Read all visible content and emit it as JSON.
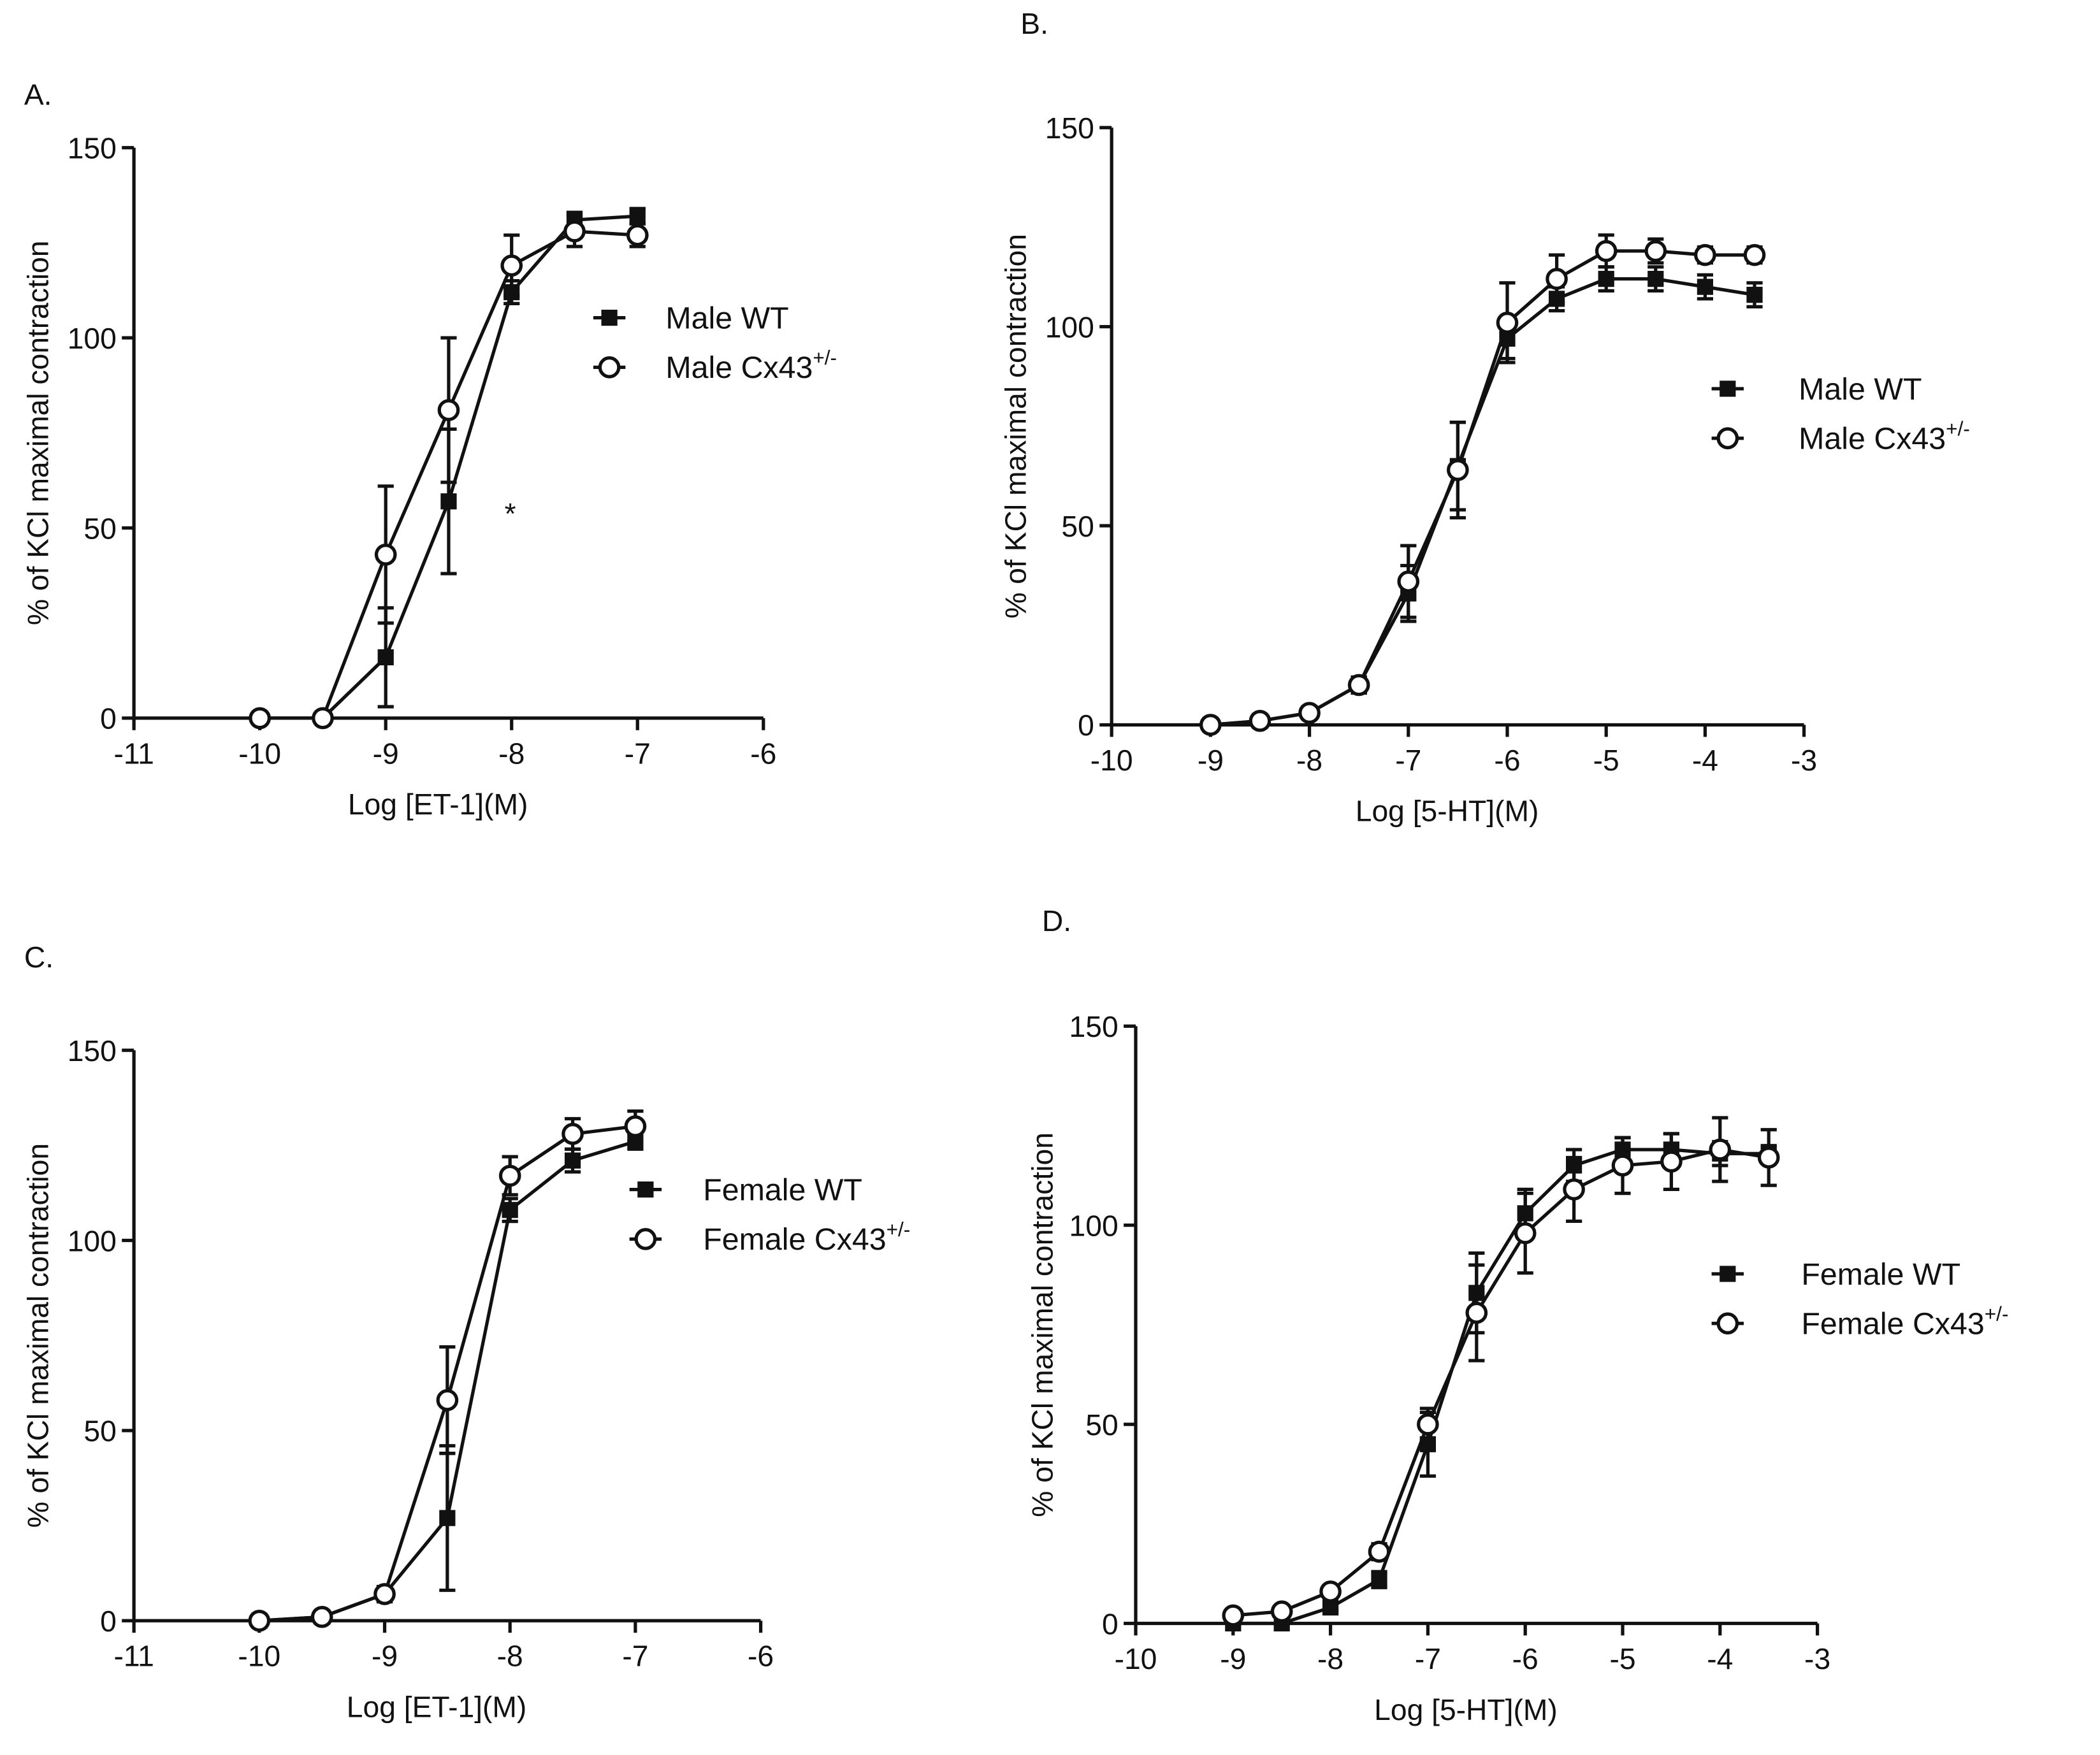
{
  "chart_data": [
    {
      "type": "line",
      "panel_label": "A.",
      "xlabel": "Log [ET-1](M)",
      "ylabel": "% of KCl maximal contraction",
      "xlim": [
        -11,
        -6
      ],
      "ylim": [
        0,
        150
      ],
      "xticks": [
        "-11",
        "-10",
        "-9",
        "-8",
        "-7",
        "-6"
      ],
      "yticks": [
        "0",
        "50",
        "100",
        "150"
      ],
      "legend_position": "right",
      "annotation": "*",
      "series": [
        {
          "name": "Male WT",
          "sup": "",
          "marker": "filled-square",
          "x": [
            -9.5,
            -9,
            -8.5,
            -8,
            -7.5,
            -7
          ],
          "y": [
            0,
            16,
            57,
            112,
            131,
            132
          ],
          "err": [
            0,
            13,
            19,
            3,
            2,
            2
          ]
        },
        {
          "name": "Male Cx43",
          "sup": "+/-",
          "marker": "open-circle",
          "x": [
            -10,
            -9.5,
            -9,
            -8.5,
            -8,
            -7.5,
            -7
          ],
          "y": [
            0,
            0,
            43,
            81,
            119,
            128,
            127
          ],
          "err": [
            0,
            0,
            18,
            19,
            8,
            4,
            3
          ]
        }
      ]
    },
    {
      "type": "line",
      "panel_label": "B.",
      "xlabel": "Log [5-HT](M)",
      "ylabel": "% of KCl maximal contraction",
      "xlim": [
        -10,
        -3
      ],
      "ylim": [
        0,
        150
      ],
      "xticks": [
        "-10",
        "-9",
        "-8",
        "-7",
        "-6",
        "-5",
        "-4",
        "-3"
      ],
      "yticks": [
        "0",
        "50",
        "100",
        "150"
      ],
      "legend_position": "right",
      "series": [
        {
          "name": "Male WT",
          "sup": "",
          "marker": "filled-square",
          "x": [
            -9,
            -8.5,
            -8,
            -7.5,
            -7,
            -6.5,
            -6,
            -5.5,
            -5,
            -4.5,
            -4,
            -3.5
          ],
          "y": [
            0,
            1,
            3,
            10,
            33,
            65,
            97,
            107,
            112,
            112,
            110,
            108
          ],
          "err": [
            0,
            1,
            1,
            2,
            7,
            11,
            5,
            3,
            3,
            3,
            3,
            3
          ]
        },
        {
          "name": "Male Cx43",
          "sup": "+/-",
          "marker": "open-circle",
          "x": [
            -9,
            -8.5,
            -8,
            -7.5,
            -7,
            -6.5,
            -6,
            -5.5,
            -5,
            -4.5,
            -4,
            -3.5
          ],
          "y": [
            0,
            1,
            3,
            10,
            36,
            64,
            101,
            112,
            119,
            119,
            118,
            118
          ],
          "err": [
            0,
            1,
            1,
            2,
            9,
            12,
            10,
            6,
            4,
            3,
            2,
            2
          ]
        }
      ]
    },
    {
      "type": "line",
      "panel_label": "C.",
      "xlabel": "Log [ET-1](M)",
      "ylabel": "% of KCl maximal contraction",
      "xlim": [
        -11,
        -6
      ],
      "ylim": [
        0,
        150
      ],
      "xticks": [
        "-11",
        "-10",
        "-9",
        "-8",
        "-7",
        "-6"
      ],
      "yticks": [
        "0",
        "50",
        "100",
        "150"
      ],
      "legend_position": "right",
      "series": [
        {
          "name": "Female WT",
          "sup": "",
          "marker": "filled-square",
          "x": [
            -10,
            -9.5,
            -9,
            -8.5,
            -8,
            -7.5,
            -7
          ],
          "y": [
            0,
            1,
            7,
            27,
            108,
            121,
            126
          ],
          "err": [
            0,
            0,
            2,
            19,
            3,
            3,
            2
          ]
        },
        {
          "name": "Female Cx43",
          "sup": "+/-",
          "marker": "open-circle",
          "x": [
            -10,
            -9.5,
            -9,
            -8.5,
            -8,
            -7.5,
            -7
          ],
          "y": [
            0,
            1,
            7,
            58,
            117,
            128,
            130
          ],
          "err": [
            0,
            0,
            2,
            14,
            5,
            4,
            4
          ]
        }
      ]
    },
    {
      "type": "line",
      "panel_label": "D.",
      "xlabel": "Log [5-HT](M)",
      "ylabel": "% of KCl maximal contraction",
      "xlim": [
        -10,
        -3
      ],
      "ylim": [
        0,
        150
      ],
      "xticks": [
        "-10",
        "-9",
        "-8",
        "-7",
        "-6",
        "-5",
        "-4",
        "-3"
      ],
      "yticks": [
        "0",
        "50",
        "100",
        "150"
      ],
      "legend_position": "right",
      "series": [
        {
          "name": "Female WT",
          "sup": "",
          "marker": "filled-square",
          "x": [
            -9,
            -8.5,
            -8,
            -7.5,
            -7,
            -6.5,
            -6,
            -5.5,
            -5,
            -4.5,
            -4,
            -3.5
          ],
          "y": [
            0,
            0,
            4,
            11,
            45,
            83,
            103,
            115,
            119,
            119,
            118,
            118
          ],
          "err": [
            0,
            0,
            1,
            2,
            8,
            10,
            6,
            4,
            3,
            4,
            3,
            2
          ]
        },
        {
          "name": "Female Cx43",
          "sup": "+/-",
          "marker": "open-circle",
          "x": [
            -9,
            -8.5,
            -8,
            -7.5,
            -7,
            -6.5,
            -6,
            -5.5,
            -5,
            -4.5,
            -4,
            -3.5
          ],
          "y": [
            2,
            3,
            8,
            18,
            50,
            78,
            98,
            109,
            115,
            116,
            119,
            117
          ],
          "err": [
            0,
            0,
            1,
            2,
            4,
            12,
            10,
            8,
            7,
            7,
            8,
            7
          ]
        }
      ]
    }
  ]
}
